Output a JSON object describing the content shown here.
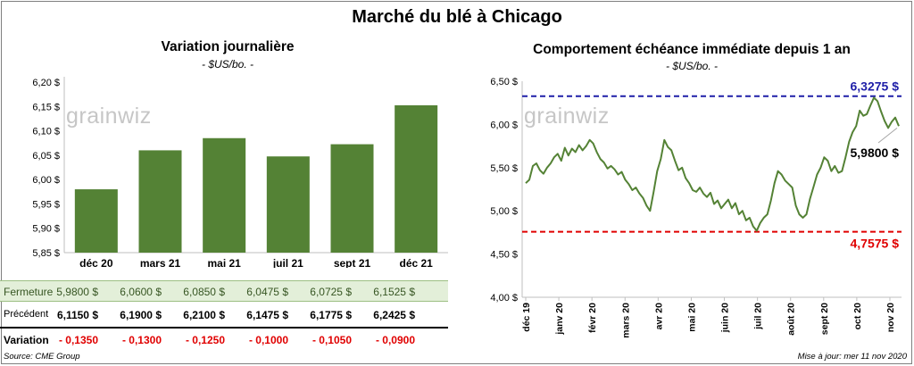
{
  "page": {
    "title": "Marché du blé à Chicago",
    "source": "Source: CME Group",
    "updated": "Mise à jour: mer 11 nov 2020"
  },
  "left": {
    "watermark": "grainwiz"
  },
  "right": {
    "watermark": "grainwiz"
  },
  "colors": {
    "bar": "#548235",
    "line": "#548235",
    "high": "#1f1fa8",
    "low": "#e00000",
    "negative": "#e00000"
  },
  "table": {
    "rows": [
      {
        "label": "Fermeture",
        "values": [
          "5,9800  $",
          "6,0600  $",
          "6,0850  $",
          "6,0475  $",
          "6,0725  $",
          "6,1525  $"
        ]
      },
      {
        "label": "Précédent",
        "values": [
          "6,1150  $",
          "6,1900  $",
          "6,2100  $",
          "6,1475  $",
          "6,1775  $",
          "6,2425  $"
        ]
      },
      {
        "label": "Variation",
        "values": [
          "- 0,1350",
          "- 0,1300",
          "- 0,1250",
          "- 0,1000",
          "- 0,1050",
          "- 0,0900"
        ]
      }
    ]
  },
  "chart_data": [
    {
      "type": "bar",
      "title": "Variation  journalière",
      "subtitle": "- $US/bo. -",
      "categories": [
        "déc 20",
        "mars 21",
        "mai 21",
        "juil 21",
        "sept 21",
        "déc 21"
      ],
      "values": [
        5.98,
        6.06,
        6.085,
        6.0475,
        6.0725,
        6.1525
      ],
      "ylim": [
        5.85,
        6.2
      ],
      "yticks": [
        5.85,
        5.9,
        5.95,
        6.0,
        6.05,
        6.1,
        6.15,
        6.2
      ],
      "ytick_labels": [
        "5,85 $",
        "5,90 $",
        "5,95 $",
        "6,00 $",
        "6,05 $",
        "6,10 $",
        "6,15 $",
        "6,20 $"
      ],
      "grid": false
    },
    {
      "type": "line",
      "title": "Comportement  échéance immédiate depuis 1 an",
      "subtitle": "- $US/bo. -",
      "x_tick_labels": [
        "déc 19",
        "janv 20",
        "févr 20",
        "mars 20",
        "avr 20",
        "mai 20",
        "juin 20",
        "juil 20",
        "août 20",
        "sept 20",
        "oct 20",
        "nov 20"
      ],
      "ylim": [
        4.0,
        6.5
      ],
      "yticks": [
        4.0,
        4.5,
        5.0,
        5.5,
        6.0,
        6.5
      ],
      "ytick_labels": [
        "4,00 $",
        "4,50 $",
        "5,00 $",
        "5,50 $",
        "6,00 $",
        "6,50 $"
      ],
      "high_line": {
        "value": 6.3275,
        "label": "6,3275  $"
      },
      "low_line": {
        "value": 4.7575,
        "label": "4,7575  $"
      },
      "last": {
        "value": 5.98,
        "label": "5,9800 $"
      },
      "values": [
        5.32,
        5.36,
        5.52,
        5.55,
        5.47,
        5.43,
        5.5,
        5.55,
        5.62,
        5.66,
        5.58,
        5.73,
        5.64,
        5.72,
        5.68,
        5.76,
        5.7,
        5.75,
        5.82,
        5.78,
        5.68,
        5.6,
        5.56,
        5.49,
        5.52,
        5.48,
        5.42,
        5.45,
        5.36,
        5.31,
        5.24,
        5.27,
        5.2,
        5.15,
        5.06,
        5.0,
        5.22,
        5.46,
        5.6,
        5.82,
        5.74,
        5.7,
        5.58,
        5.47,
        5.5,
        5.38,
        5.32,
        5.24,
        5.22,
        5.27,
        5.2,
        5.16,
        5.21,
        5.08,
        5.12,
        5.03,
        5.08,
        5.13,
        5.03,
        5.09,
        4.96,
        5.0,
        4.89,
        4.92,
        4.82,
        4.77,
        4.86,
        4.92,
        4.96,
        5.12,
        5.32,
        5.46,
        5.42,
        5.35,
        5.31,
        5.27,
        5.06,
        4.96,
        4.92,
        4.96,
        5.14,
        5.28,
        5.42,
        5.5,
        5.62,
        5.58,
        5.46,
        5.52,
        5.44,
        5.46,
        5.62,
        5.8,
        5.91,
        5.98,
        6.16,
        6.1,
        6.12,
        6.22,
        6.31,
        6.27,
        6.15,
        6.04,
        5.96,
        6.03,
        6.08,
        5.98
      ]
    }
  ]
}
